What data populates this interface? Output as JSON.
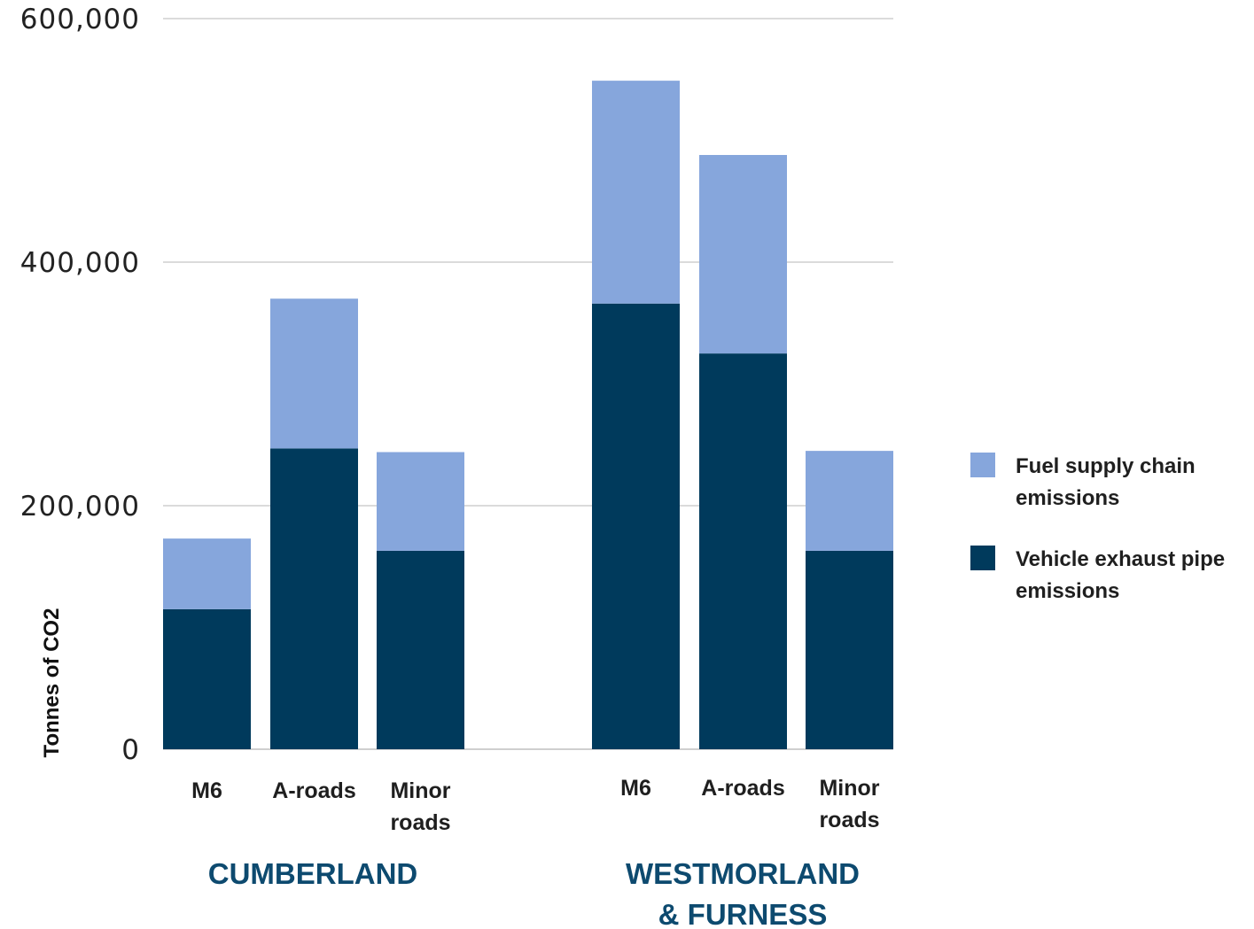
{
  "chart_data": {
    "type": "bar",
    "stacked": true,
    "title": "",
    "ylabel": "Tonnes of CO2",
    "ylim": [
      0,
      600000
    ],
    "yticks": [
      0,
      200000,
      400000,
      600000
    ],
    "ytick_labels": [
      "0",
      "200,000",
      "400,000",
      "600,000"
    ],
    "grid": true,
    "legend_position": "right",
    "groups": [
      {
        "name": "CUMBERLAND",
        "categories": [
          [
            "M6"
          ],
          [
            "A-roads"
          ],
          [
            "Minor",
            "roads"
          ]
        ]
      },
      {
        "name": "WESTMORLAND & FURNESS",
        "name_lines": [
          "WESTMORLAND",
          "& FURNESS"
        ],
        "categories": [
          [
            "M6"
          ],
          [
            "A-roads"
          ],
          [
            "Minor",
            "roads"
          ]
        ]
      }
    ],
    "series": [
      {
        "name": "Vehicle exhaust pipe emissions",
        "legend_lines": [
          "Vehicle exhaust pipe",
          "emissions"
        ],
        "color": "#003a5c",
        "values": [
          115000,
          247000,
          163000,
          366000,
          325000,
          163000
        ]
      },
      {
        "name": "Fuel supply chain emissions",
        "legend_lines": [
          "Fuel supply chain",
          "emissions"
        ],
        "color": "#86a6dc",
        "values": [
          58000,
          123000,
          81000,
          183000,
          163000,
          82000
        ]
      }
    ],
    "legend_order": [
      1,
      0
    ],
    "gridline_color": "#cfcfcf"
  }
}
